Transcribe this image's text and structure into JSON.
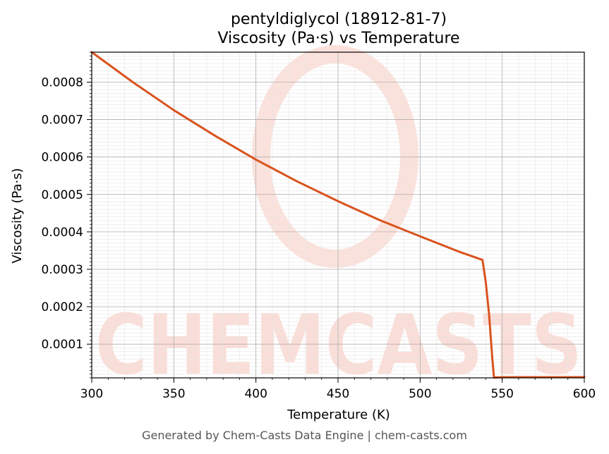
{
  "chart_data": {
    "type": "line",
    "title": "pentyldiglycol (18912-81-7)",
    "subtitle": "Viscosity (Pa·s) vs Temperature",
    "xlabel": "Temperature (K)",
    "ylabel": "Viscosity (Pa·s)",
    "xlim": [
      300,
      600
    ],
    "ylim": [
      1e-05,
      0.00088
    ],
    "x_ticks": [
      "300",
      "350",
      "400",
      "450",
      "500",
      "550",
      "600"
    ],
    "x_tick_values": [
      300,
      350,
      400,
      450,
      500,
      550,
      600
    ],
    "y_ticks": [
      "0.0001",
      "0.0002",
      "0.0003",
      "0.0004",
      "0.0005",
      "0.0006",
      "0.0007",
      "0.0008"
    ],
    "y_tick_values": [
      0.0001,
      0.0002,
      0.0003,
      0.0004,
      0.0005,
      0.0006,
      0.0007,
      0.0008
    ],
    "grid": true,
    "series": [
      {
        "name": "Viscosity",
        "color": "#d9531e",
        "x": [
          300,
          325,
          350,
          375,
          400,
          425,
          450,
          475,
          500,
          525,
          538,
          540,
          542,
          544,
          545,
          550,
          575,
          600
        ],
        "y": [
          0.00088,
          0.0008,
          0.000725,
          0.000657,
          0.000593,
          0.000535,
          0.000482,
          0.000432,
          0.000388,
          0.000345,
          0.000325,
          0.000265,
          0.00018,
          6e-05,
          1.1e-05,
          1.2e-05,
          1.2e-05,
          1.2e-05
        ]
      }
    ]
  },
  "watermark": {
    "text": "CHEMCASTS",
    "color": "#f9c8bd"
  },
  "footer": "Generated by Chem-Casts Data Engine | chem-casts.com"
}
